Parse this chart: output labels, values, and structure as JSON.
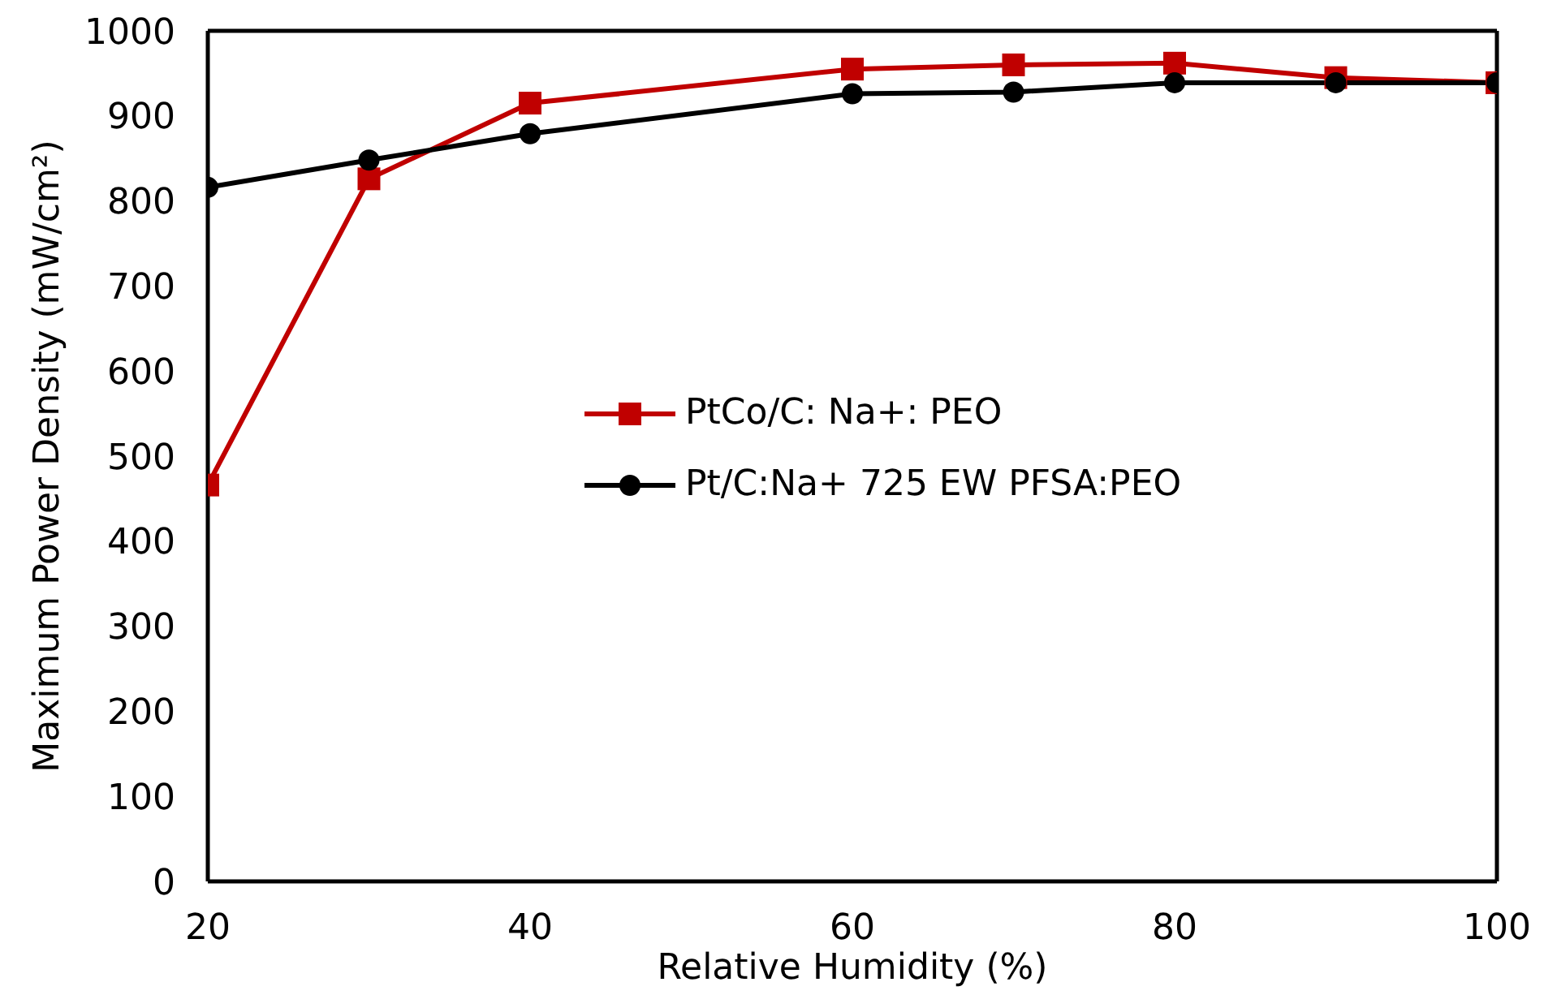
{
  "chart_data": {
    "type": "line",
    "xlabel": "Relative Humidity (%)",
    "ylabel": "Maximum Power Density (mW/cm²)",
    "xlim": [
      20,
      100
    ],
    "xticks": [
      20,
      40,
      60,
      80,
      100
    ],
    "ylim": [
      0,
      1000
    ],
    "yticks": [
      0,
      100,
      200,
      300,
      400,
      500,
      600,
      700,
      800,
      900,
      1000
    ],
    "grid": false,
    "legend": "center right",
    "line_style": "solid",
    "series": [
      {
        "name": "PtCo/C: Na+: PEO",
        "color": "#c00000",
        "marker": "square",
        "x": [
          20,
          30,
          40,
          60,
          70,
          80,
          90,
          100
        ],
        "values": [
          466,
          826,
          915,
          955,
          960,
          962,
          945,
          939
        ]
      },
      {
        "name": "Pt/C:Na+ 725 EW PFSA:PEO",
        "color": "#000000",
        "marker": "circle",
        "x": [
          20,
          30,
          40,
          60,
          70,
          80,
          90,
          100
        ],
        "values": [
          816,
          848,
          879,
          926,
          928,
          939,
          939,
          939
        ]
      }
    ]
  }
}
